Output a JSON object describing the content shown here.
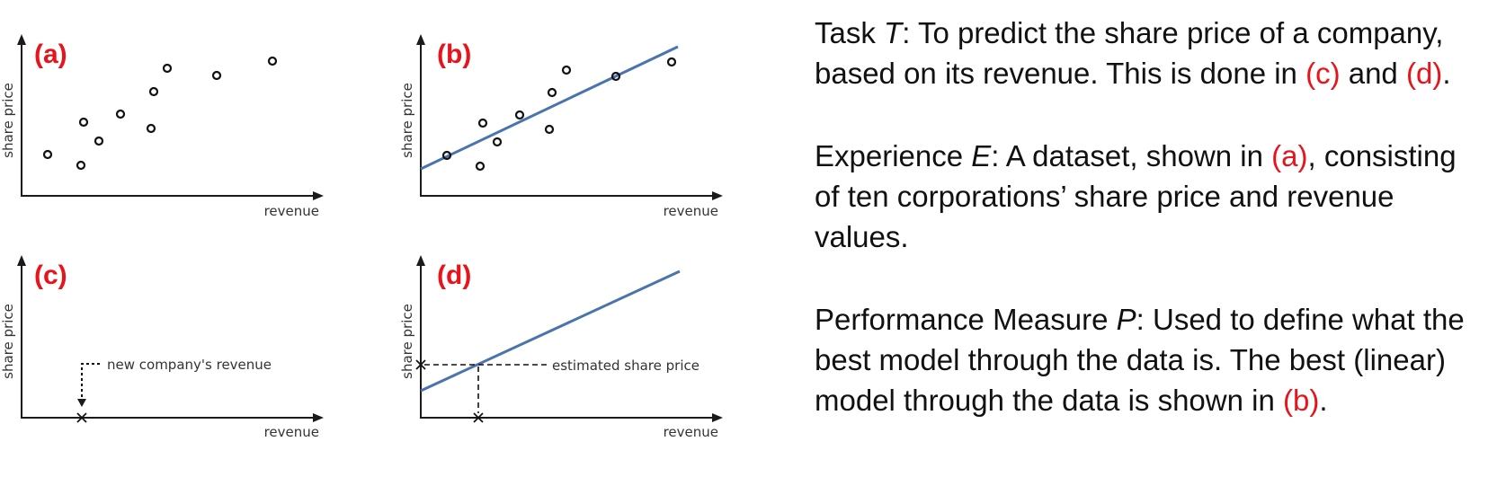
{
  "panels": {
    "a": {
      "label": "(a)",
      "ylabel": "share price",
      "xlabel": "revenue"
    },
    "b": {
      "label": "(b)",
      "ylabel": "share price",
      "xlabel": "revenue"
    },
    "c": {
      "label": "(c)",
      "ylabel": "share price",
      "xlabel": "revenue",
      "annotation": "new company's revenue"
    },
    "d": {
      "label": "(d)",
      "ylabel": "share price",
      "xlabel": "revenue",
      "annotation": "estimated share price"
    }
  },
  "colors": {
    "label_red": "#e8141b",
    "fit_line_blue": "#4a74ad"
  },
  "text": {
    "task": {
      "prefix": "Task ",
      "var": "T",
      "body": ": To predict the share price of a company, based on its revenue. This is done in ",
      "ref1": "(c)",
      "mid": " and ",
      "ref2": "(d)",
      "end": "."
    },
    "experience": {
      "prefix": "Experience ",
      "var": "E",
      "body": ": A dataset, shown in ",
      "ref": "(a)",
      "end": ", consisting of ten corporations’ share price and revenue values."
    },
    "performance": {
      "prefix": "Performance Measure ",
      "var": "P",
      "body": ": Used to define what the best model through the data is. The best (linear) model through the data is shown in ",
      "ref": "(b)",
      "end": "."
    }
  }
}
